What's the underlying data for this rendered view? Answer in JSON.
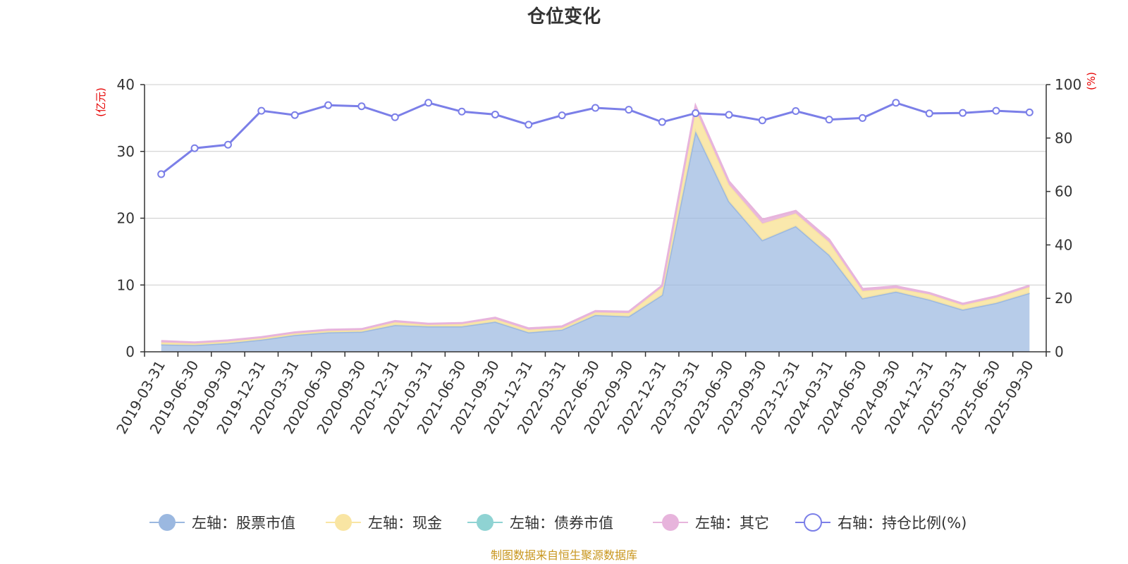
{
  "chart_data": {
    "type": "area",
    "title": "仓位变化",
    "left_axis_unit": "(亿元)",
    "right_axis_unit": "(%)",
    "ylim_left": [
      0,
      40
    ],
    "ylim_right": [
      0,
      100
    ],
    "yticks_left": [
      0,
      10,
      20,
      30,
      40
    ],
    "yticks_right": [
      0,
      20,
      40,
      60,
      80,
      100
    ],
    "x": [
      "2019-03-31",
      "2019-06-30",
      "2019-09-30",
      "2019-12-31",
      "2020-03-31",
      "2020-06-30",
      "2020-09-30",
      "2020-12-31",
      "2021-03-31",
      "2021-06-30",
      "2021-09-30",
      "2021-12-31",
      "2022-03-31",
      "2022-06-30",
      "2022-09-30",
      "2022-12-31",
      "2023-03-31",
      "2023-06-30",
      "2023-09-30",
      "2023-12-31",
      "2024-03-31",
      "2024-06-30",
      "2024-09-30",
      "2024-12-31",
      "2025-03-31",
      "2025-06-30",
      "2025-09-30"
    ],
    "series": [
      {
        "name": "左轴：股票市值",
        "axis": "left",
        "color": "#9bb8e0",
        "values": [
          1.1,
          1.0,
          1.3,
          1.8,
          2.5,
          2.9,
          3.0,
          4.0,
          3.8,
          3.8,
          4.5,
          2.9,
          3.3,
          5.5,
          5.3,
          8.5,
          33.0,
          22.5,
          16.7,
          18.8,
          14.5,
          8.0,
          9.0,
          7.8,
          6.3,
          7.3,
          8.8
        ]
      },
      {
        "name": "左轴：现金",
        "axis": "left",
        "color": "#f9e5a3",
        "values": [
          0.3,
          0.3,
          0.3,
          0.3,
          0.3,
          0.3,
          0.3,
          0.4,
          0.3,
          0.4,
          0.4,
          0.4,
          0.3,
          0.4,
          0.5,
          1.2,
          3.3,
          2.5,
          2.5,
          1.9,
          1.9,
          1.1,
          0.5,
          0.8,
          0.7,
          0.8,
          0.9
        ]
      },
      {
        "name": "左轴：债券市值",
        "axis": "left",
        "color": "#8fd3d3",
        "values": [
          0,
          0,
          0,
          0,
          0,
          0,
          0,
          0,
          0,
          0,
          0,
          0,
          0,
          0,
          0,
          0,
          0,
          0,
          0,
          0,
          0,
          0,
          0,
          0,
          0,
          0,
          0
        ]
      },
      {
        "name": "左轴：其它",
        "axis": "left",
        "color": "#e7b4dc",
        "values": [
          0.2,
          0.1,
          0.1,
          0.1,
          0.1,
          0.1,
          0.1,
          0.2,
          0.1,
          0.1,
          0.2,
          0.2,
          0.2,
          0.2,
          0.2,
          0.2,
          0.5,
          0.5,
          0.6,
          0.4,
          0.4,
          0.3,
          0.3,
          0.2,
          0.2,
          0.2,
          0.2
        ]
      },
      {
        "name": "右轴：持仓比例(%)",
        "axis": "right",
        "color": "#7b7fe8",
        "values": [
          66.5,
          76.2,
          77.5,
          90.2,
          88.6,
          92.3,
          91.9,
          87.8,
          93.2,
          89.9,
          88.8,
          85.0,
          88.5,
          91.3,
          90.6,
          86.0,
          89.3,
          88.7,
          86.6,
          90.1,
          86.9,
          87.5,
          93.2,
          89.2,
          89.4,
          90.2,
          89.6
        ]
      }
    ]
  },
  "legend": {
    "items": [
      "左轴：股票市值",
      "左轴：现金",
      "左轴：债券市值",
      "左轴：其它",
      "右轴：持仓比例(%)"
    ]
  },
  "source_text": "制图数据来自恒生聚源数据库"
}
